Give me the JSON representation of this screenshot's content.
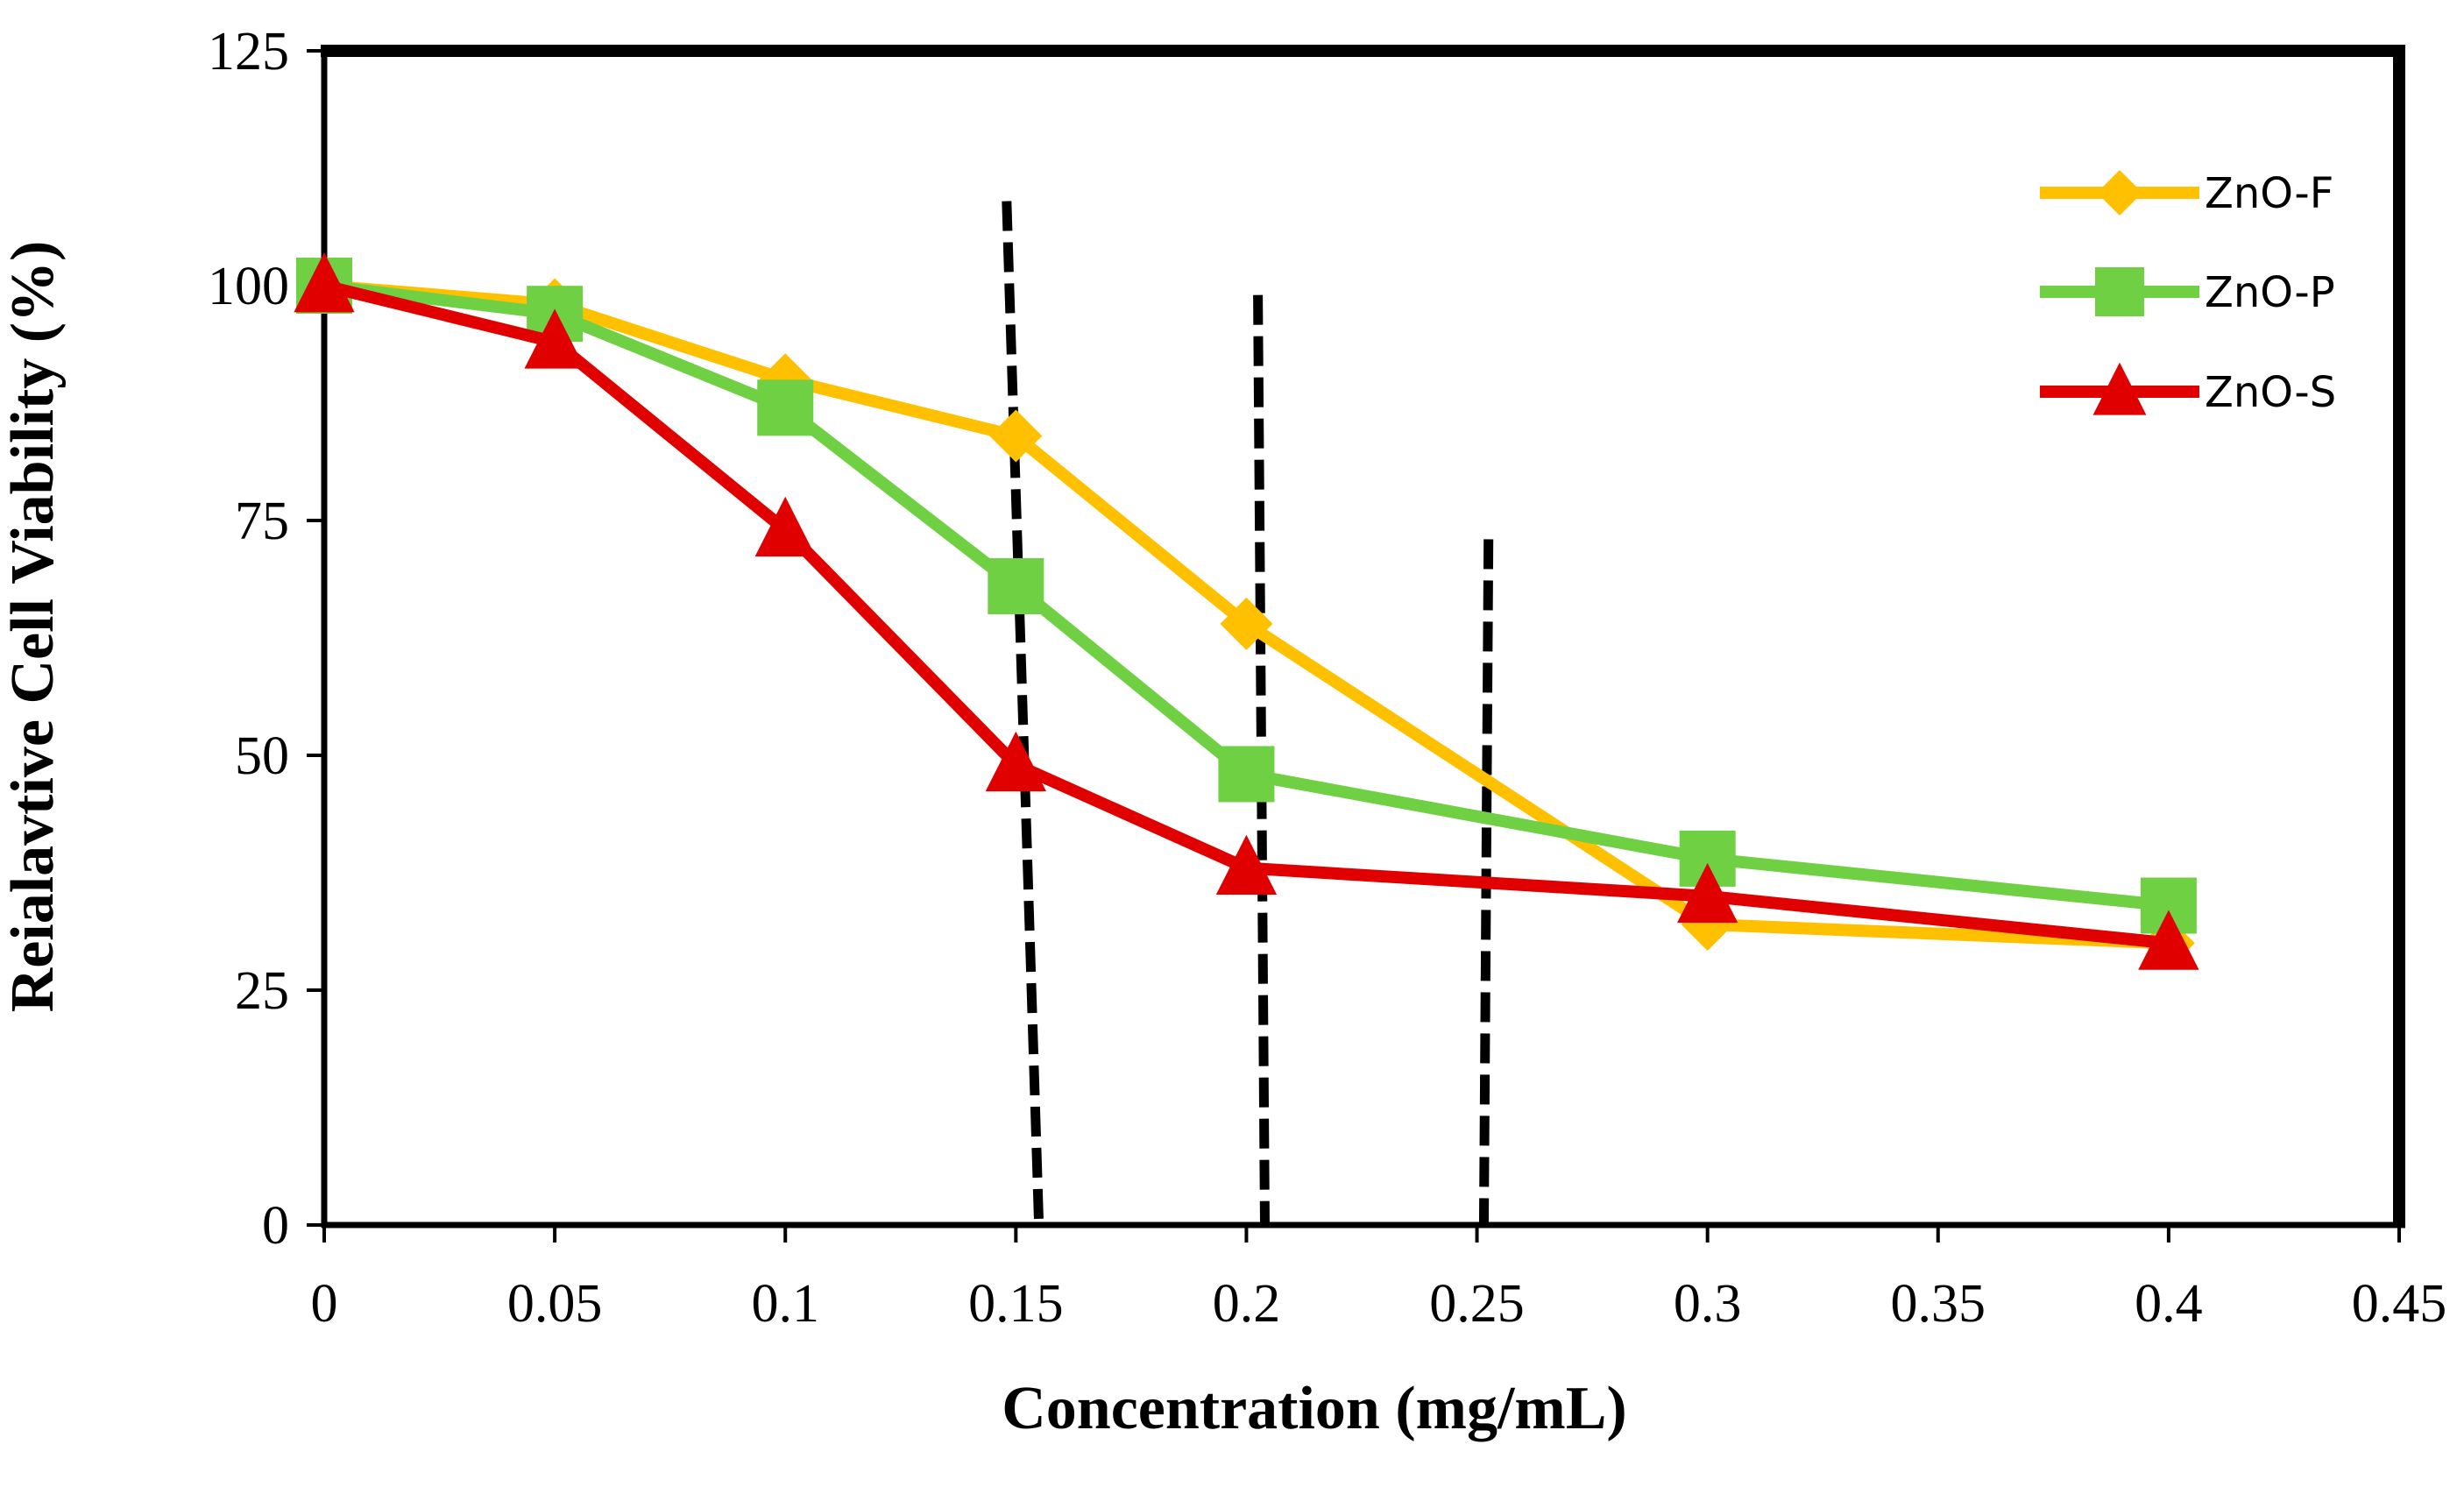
{
  "chart_data": {
    "type": "line",
    "title": "",
    "xlabel": "Concentration (mg/mL)",
    "ylabel": "Reialavtive Cell Viability (%)",
    "xlim": [
      0,
      0.45
    ],
    "ylim": [
      0,
      125
    ],
    "x_ticks": [
      "0",
      "0.05",
      "0.1",
      "0.15",
      "0.2",
      "0.25",
      "0.3",
      "0.35",
      "0.4",
      "0.45"
    ],
    "y_ticks": [
      "0",
      "25",
      "50",
      "75",
      "100",
      "125"
    ],
    "grid": false,
    "legend_position": "top-right",
    "series": [
      {
        "name": "ZnO-F",
        "color": "#FFC000",
        "marker": "diamond",
        "x": [
          0,
          0.05,
          0.1,
          0.15,
          0.2,
          0.3,
          0.4
        ],
        "y": [
          100,
          98,
          90,
          84,
          64,
          32,
          30
        ]
      },
      {
        "name": "ZnO-P",
        "color": "#70D044",
        "marker": "square",
        "x": [
          0,
          0.05,
          0.1,
          0.15,
          0.2,
          0.3,
          0.4
        ],
        "y": [
          100,
          97,
          87,
          68,
          48,
          39,
          34
        ]
      },
      {
        "name": "ZnO-S",
        "color": "#E00000",
        "marker": "triangle",
        "x": [
          0,
          0.05,
          0.1,
          0.15,
          0.2,
          0.3,
          0.4
        ],
        "y": [
          100,
          94,
          74,
          49,
          38,
          35,
          30
        ]
      }
    ],
    "reference_lines": [
      {
        "x_top": 0.148,
        "y_top": 109,
        "x_bottom": 0.155,
        "y_bottom": 0
      },
      {
        "x_top": 0.2025,
        "y_top": 99,
        "x_bottom": 0.204,
        "y_bottom": 0
      },
      {
        "x_top": 0.2525,
        "y_top": 73,
        "x_bottom": 0.2515,
        "y_bottom": 0
      }
    ]
  }
}
